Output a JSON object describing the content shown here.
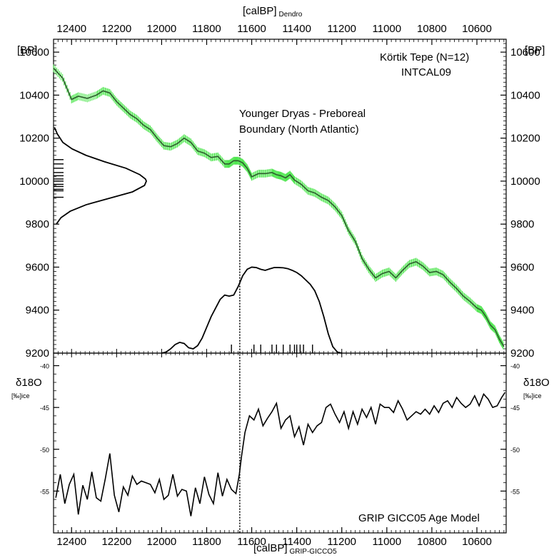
{
  "chart_data": [
    {
      "type": "line",
      "name_upper_panel": "calibration",
      "top_axis_label": "[calBP]",
      "top_axis_subscript": "Dendro",
      "left_axis_label": "[BP]",
      "right_axis_label": "[BP]",
      "xlim": [
        12480,
        10470
      ],
      "ylim": [
        9200,
        10660
      ],
      "x_ticks": [
        12400,
        12200,
        12000,
        11800,
        11600,
        11400,
        11200,
        11000,
        10800,
        10600
      ],
      "y_ticks": [
        9200,
        9400,
        9600,
        9800,
        10000,
        10200,
        10400,
        10600
      ],
      "annotations": {
        "site": "Körtik Tepe (N=12)",
        "curve": "INTCAL09",
        "boundary_line1": "Younger Dryas - Preboreal",
        "boundary_line2": "Boundary (North Atlantic)"
      },
      "boundary_x": 11653,
      "calibration_curve": {
        "color": "#2e5c2e",
        "error_color": "#4fe64f",
        "x": [
          12480,
          12440,
          12400,
          12370,
          12330,
          12290,
          12260,
          12230,
          12200,
          12170,
          12140,
          12110,
          12080,
          12050,
          12020,
          11990,
          11960,
          11930,
          11900,
          11870,
          11840,
          11810,
          11780,
          11750,
          11720,
          11700,
          11680,
          11660,
          11640,
          11620,
          11600,
          11570,
          11540,
          11510,
          11490,
          11470,
          11450,
          11430,
          11410,
          11380,
          11350,
          11320,
          11290,
          11260,
          11230,
          11200,
          11170,
          11140,
          11110,
          11080,
          11050,
          11020,
          10990,
          10960,
          10930,
          10900,
          10870,
          10840,
          10810,
          10780,
          10750,
          10720,
          10690,
          10660,
          10630,
          10600,
          10580,
          10560,
          10540,
          10520,
          10500,
          10480
        ],
        "y": [
          10525,
          10480,
          10380,
          10395,
          10385,
          10400,
          10420,
          10410,
          10370,
          10340,
          10310,
          10290,
          10260,
          10240,
          10200,
          10165,
          10160,
          10175,
          10200,
          10180,
          10140,
          10130,
          10110,
          10115,
          10080,
          10080,
          10095,
          10095,
          10085,
          10060,
          10020,
          10035,
          10035,
          10040,
          10030,
          10025,
          10015,
          10030,
          10005,
          9985,
          9955,
          9945,
          9925,
          9910,
          9880,
          9840,
          9770,
          9720,
          9640,
          9590,
          9550,
          9570,
          9580,
          9550,
          9585,
          9615,
          9625,
          9605,
          9575,
          9580,
          9565,
          9530,
          9500,
          9465,
          9440,
          9410,
          9400,
          9370,
          9330,
          9310,
          9265,
          9230
        ]
      },
      "calibrated_distribution": {
        "x": [
          12000,
          11980,
          11960,
          11940,
          11920,
          11900,
          11880,
          11860,
          11840,
          11820,
          11800,
          11780,
          11760,
          11740,
          11720,
          11700,
          11680,
          11660,
          11640,
          11620,
          11600,
          11580,
          11560,
          11540,
          11520,
          11500,
          11480,
          11460,
          11440,
          11420,
          11400,
          11380,
          11360,
          11340,
          11320,
          11300,
          11280,
          11260,
          11240,
          11220,
          11200
        ],
        "y": [
          9200,
          9205,
          9220,
          9240,
          9250,
          9245,
          9225,
          9220,
          9235,
          9270,
          9320,
          9370,
          9410,
          9450,
          9470,
          9465,
          9470,
          9510,
          9560,
          9590,
          9600,
          9598,
          9590,
          9585,
          9592,
          9598,
          9598,
          9597,
          9593,
          9585,
          9575,
          9560,
          9540,
          9520,
          9490,
          9440,
          9370,
          9290,
          9230,
          9205,
          9200
        ]
      },
      "radiocarbon_distribution": {
        "y": [
          9800,
          9830,
          9860,
          9890,
          9920,
          9950,
          9980,
          10000,
          10010,
          10030,
          10060,
          10090,
          10120,
          10150,
          10180,
          10220,
          10250
        ],
        "density": [
          0.03,
          0.08,
          0.18,
          0.35,
          0.6,
          0.85,
          0.98,
          1.0,
          0.99,
          0.93,
          0.78,
          0.55,
          0.35,
          0.2,
          0.1,
          0.04,
          0.01
        ],
        "dates_bp": [
          9925,
          9955,
          9962,
          9975,
          9985,
          10000,
          10010,
          10025,
          10040,
          10060,
          10080,
          10100
        ]
      },
      "calibrated_dates_calbp": [
        11690,
        11590,
        11560,
        11510,
        11490,
        11460,
        11430,
        11410,
        11400,
        11385,
        11370,
        11330
      ]
    },
    {
      "type": "line",
      "name_lower_panel": "isotope",
      "bottom_axis_label": "[calBP]",
      "bottom_axis_subscript": "GRIP-GICCO5",
      "left_axis_label_main": "δ18O",
      "left_axis_label_unit": "[‰]ice",
      "right_axis_label_main": "δ18O",
      "right_axis_label_unit": "[‰]ice",
      "annotation": "GRIP GICC05 Age Model",
      "xlim": [
        12480,
        10470
      ],
      "ylim": [
        -60,
        -38.5
      ],
      "x_ticks": [
        12400,
        12200,
        12000,
        11800,
        11600,
        11400,
        11200,
        11000,
        10800,
        10600
      ],
      "y_ticks": [
        -40,
        -45,
        -50,
        -55
      ],
      "series": {
        "x": [
          12470,
          12450,
          12430,
          12410,
          12390,
          12370,
          12350,
          12330,
          12310,
          12290,
          12270,
          12250,
          12230,
          12210,
          12190,
          12170,
          12150,
          12130,
          12110,
          12090,
          12070,
          12050,
          12030,
          12010,
          11990,
          11970,
          11950,
          11930,
          11910,
          11890,
          11870,
          11850,
          11830,
          11810,
          11790,
          11770,
          11750,
          11730,
          11710,
          11690,
          11670,
          11655,
          11645,
          11630,
          11610,
          11590,
          11570,
          11550,
          11530,
          11510,
          11490,
          11470,
          11450,
          11430,
          11410,
          11390,
          11370,
          11350,
          11330,
          11310,
          11290,
          11270,
          11250,
          11230,
          11210,
          11190,
          11170,
          11150,
          11130,
          11110,
          11090,
          11070,
          11050,
          11030,
          11010,
          10990,
          10970,
          10950,
          10930,
          10910,
          10890,
          10870,
          10850,
          10830,
          10810,
          10790,
          10770,
          10750,
          10730,
          10710,
          10690,
          10670,
          10650,
          10630,
          10610,
          10590,
          10570,
          10550,
          10530,
          10510,
          10490,
          10475
        ],
        "y": [
          -55.8,
          -53.0,
          -56.5,
          -54.2,
          -53.0,
          -57.8,
          -54.3,
          -56.0,
          -52.7,
          -55.8,
          -56.2,
          -53.5,
          -50.5,
          -55.5,
          -57.5,
          -54.5,
          -55.5,
          -53.2,
          -54.2,
          -53.8,
          -54.0,
          -54.2,
          -55.2,
          -53.6,
          -56.0,
          -55.5,
          -53.0,
          -55.6,
          -54.8,
          -55.0,
          -58.0,
          -54.6,
          -56.5,
          -53.3,
          -55.4,
          -56.5,
          -52.8,
          -55.6,
          -53.6,
          -54.8,
          -55.3,
          -53.0,
          -50.8,
          -48.0,
          -46.0,
          -46.5,
          -45.2,
          -47.2,
          -46.3,
          -45.5,
          -44.5,
          -47.5,
          -46.5,
          -46.0,
          -48.5,
          -47.3,
          -49.5,
          -47.0,
          -48.0,
          -47.2,
          -46.8,
          -45.0,
          -44.6,
          -45.8,
          -46.8,
          -45.5,
          -47.5,
          -45.5,
          -47.0,
          -45.2,
          -46.2,
          -45.0,
          -47.0,
          -44.6,
          -45.0,
          -45.0,
          -45.6,
          -44.2,
          -45.2,
          -46.5,
          -46.0,
          -45.5,
          -45.8,
          -45.2,
          -45.8,
          -44.8,
          -45.6,
          -44.5,
          -44.2,
          -45.0,
          -43.8,
          -44.5,
          -45.0,
          -44.6,
          -43.6,
          -44.8,
          -43.4,
          -44.0,
          -45.0,
          -44.8,
          -43.8,
          -43.2
        ]
      }
    }
  ]
}
